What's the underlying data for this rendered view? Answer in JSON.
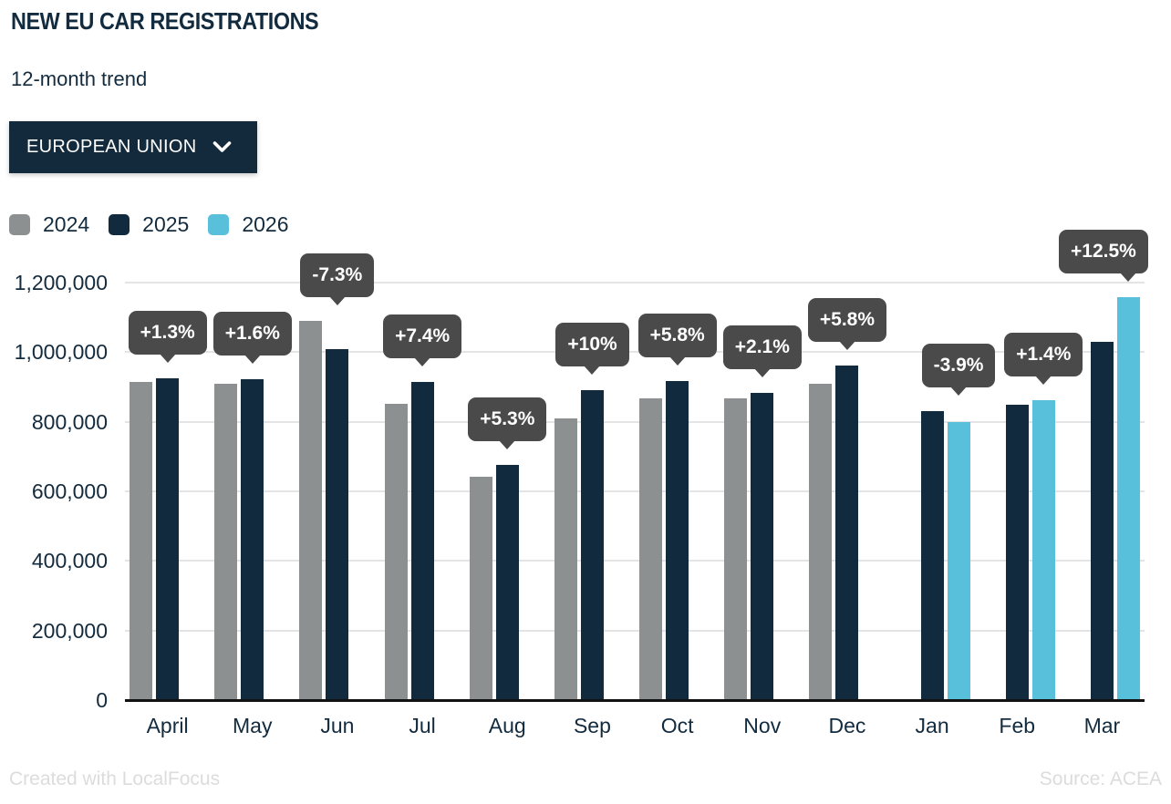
{
  "header": {
    "title": "NEW EU CAR REGISTRATIONS",
    "subtitle": "12-month trend"
  },
  "controls": {
    "region_dropdown": {
      "label": "EUROPEAN UNION",
      "icon": "chevron-down-icon",
      "expanded": false
    }
  },
  "legend": {
    "position": "top-left",
    "items": [
      {
        "label": "2024",
        "color": "#8d9091"
      },
      {
        "label": "2025",
        "color": "#112a3e"
      },
      {
        "label": "2026",
        "color": "#58c0da"
      }
    ]
  },
  "footer": {
    "left": "Created with LocalFocus",
    "right": "Source: ACEA"
  },
  "colors": {
    "text": "#132b3e",
    "tooltip_bg": "#4a4a4a",
    "tooltip_text": "#ffffff",
    "gridline": "#e4e4e4",
    "baseline": "#121212",
    "dropdown_bg": "#132a3d",
    "footer_text": "#dcdcdc",
    "background": "#ffffff"
  },
  "chart_data": {
    "type": "bar",
    "title": "NEW EU CAR REGISTRATIONS",
    "subtitle": "12-month trend",
    "categories": [
      "April",
      "May",
      "Jun",
      "Jul",
      "Aug",
      "Sep",
      "Oct",
      "Nov",
      "Dec",
      "Jan",
      "Feb",
      "Mar"
    ],
    "series": [
      {
        "name": "2024",
        "color": "#8d9091",
        "values": [
          914000,
          908000,
          1089000,
          852000,
          641000,
          809000,
          866000,
          866000,
          908000,
          null,
          null,
          null
        ]
      },
      {
        "name": "2025",
        "color": "#112a3e",
        "values": [
          926000,
          923000,
          1010000,
          915000,
          675000,
          890000,
          916000,
          884000,
          961000,
          831000,
          850000,
          1029000
        ]
      },
      {
        "name": "2026",
        "color": "#58c0da",
        "values": [
          null,
          null,
          null,
          null,
          null,
          null,
          null,
          null,
          null,
          799000,
          862000,
          1158000
        ]
      }
    ],
    "change_labels": [
      "+1.3%",
      "+1.6%",
      "-7.3%",
      "+7.4%",
      "+5.3%",
      "+10%",
      "+5.8%",
      "+2.1%",
      "+5.8%",
      "-3.9%",
      "+1.4%",
      "+12.5%"
    ],
    "xlabel": "",
    "ylabel": "",
    "ylim": [
      0,
      1200000
    ],
    "yticks": [
      0,
      200000,
      400000,
      600000,
      800000,
      1000000,
      1200000
    ],
    "ytick_labels": [
      "0",
      "200,000",
      "400,000",
      "600,000",
      "800,000",
      "1,000,000",
      "1,200,000"
    ],
    "grid": true,
    "legend_position": "top-left"
  }
}
